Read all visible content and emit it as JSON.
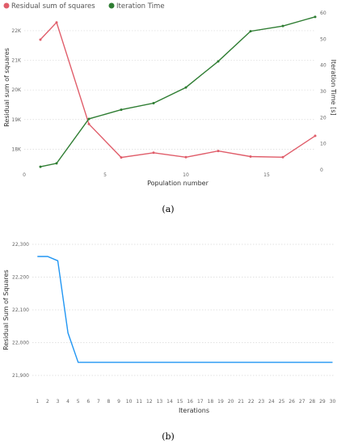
{
  "panels": [
    {
      "label": "(a)"
    },
    {
      "label": "(b)"
    }
  ],
  "chart_data": [
    {
      "type": "line",
      "legend": {
        "placement": "top-left"
      },
      "xlabel": "Population number",
      "ylabel": "Residual sum of squares",
      "y2label": "Iteration Time [s]",
      "xlim": [
        0,
        18
      ],
      "xticks": [
        0,
        5,
        10,
        15
      ],
      "ylim": [
        17300,
        22600
      ],
      "yticks": [
        18000,
        19000,
        20000,
        21000,
        22000
      ],
      "ytick_labels": [
        "18K",
        "19K",
        "20K",
        "21K",
        "22K"
      ],
      "y2lim": [
        0,
        60
      ],
      "y2ticks": [
        0,
        10,
        20,
        30,
        40,
        50,
        60
      ],
      "grid": true,
      "series": [
        {
          "name": "Residual sum of squares",
          "axis": "left",
          "color": "#e05d6a",
          "x": [
            1,
            2,
            4,
            6,
            8,
            10,
            12,
            14,
            16,
            18
          ],
          "y": [
            21700,
            22280,
            18850,
            17720,
            17880,
            17730,
            17940,
            17750,
            17730,
            18450
          ]
        },
        {
          "name": "Iteration Time",
          "axis": "right",
          "color": "#2e7d32",
          "x": [
            1,
            2,
            4,
            6,
            8,
            10,
            12,
            14,
            16,
            18
          ],
          "y": [
            1.2,
            2.5,
            19.5,
            23,
            25.5,
            31.5,
            41.5,
            53,
            55,
            58.5
          ]
        }
      ]
    },
    {
      "type": "line",
      "xlabel": "Iterations",
      "ylabel": "Residual Sum of Squares",
      "xlim": [
        0.5,
        30.2
      ],
      "xticks": [
        1,
        2,
        3,
        4,
        5,
        6,
        7,
        8,
        9,
        10,
        11,
        12,
        13,
        14,
        15,
        16,
        17,
        18,
        19,
        20,
        21,
        22,
        23,
        24,
        25,
        26,
        27,
        28,
        29,
        30
      ],
      "ylim": [
        21900,
        22300
      ],
      "yticks": [
        21900,
        22000,
        22100,
        22200,
        22300
      ],
      "ytick_labels": [
        "21,900",
        "22,000",
        "22,100",
        "22,200",
        "22,300"
      ],
      "grid": true,
      "series": [
        {
          "color": "#2196f3",
          "x": [
            1,
            2,
            3,
            4,
            5,
            6,
            7,
            8,
            9,
            10,
            11,
            12,
            13,
            14,
            15,
            16,
            17,
            18,
            19,
            20,
            21,
            22,
            23,
            24,
            25,
            26,
            27,
            28,
            29,
            30
          ],
          "y": [
            22263,
            22263,
            22250,
            22030,
            21940,
            21940,
            21940,
            21940,
            21940,
            21940,
            21940,
            21940,
            21940,
            21940,
            21940,
            21940,
            21940,
            21940,
            21940,
            21940,
            21940,
            21940,
            21940,
            21940,
            21940,
            21940,
            21940,
            21940,
            21940,
            21940
          ]
        }
      ]
    }
  ]
}
